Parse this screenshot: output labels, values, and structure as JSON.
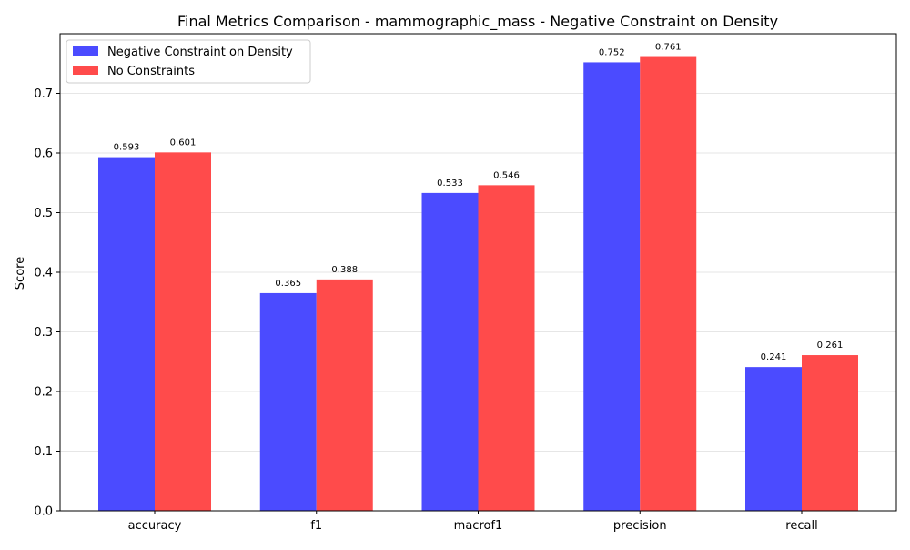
{
  "chart_data": {
    "type": "bar",
    "title": "Final Metrics Comparison - mammographic_mass - Negative Constraint on Density",
    "xlabel": "",
    "ylabel": "Score",
    "categories": [
      "accuracy",
      "f1",
      "macrof1",
      "precision",
      "recall"
    ],
    "series": [
      {
        "name": "Negative Constraint on Density",
        "color": "#4b4bff",
        "values": [
          0.593,
          0.365,
          0.533,
          0.752,
          0.241
        ],
        "labels": [
          "0.593",
          "0.365",
          "0.533",
          "0.752",
          "0.241"
        ]
      },
      {
        "name": "No Constraints",
        "color": "#ff4b4b",
        "values": [
          0.601,
          0.388,
          0.546,
          0.761,
          0.261
        ],
        "labels": [
          "0.601",
          "0.388",
          "0.546",
          "0.761",
          "0.261"
        ]
      }
    ],
    "ylim": [
      0,
      0.8
    ],
    "yticks": [
      0.0,
      0.1,
      0.2,
      0.3,
      0.4,
      0.5,
      0.6,
      0.7
    ],
    "ytick_labels": [
      "0.0",
      "0.1",
      "0.2",
      "0.3",
      "0.4",
      "0.5",
      "0.6",
      "0.7"
    ],
    "grid": "horizontal",
    "legend_position": "top-left"
  }
}
